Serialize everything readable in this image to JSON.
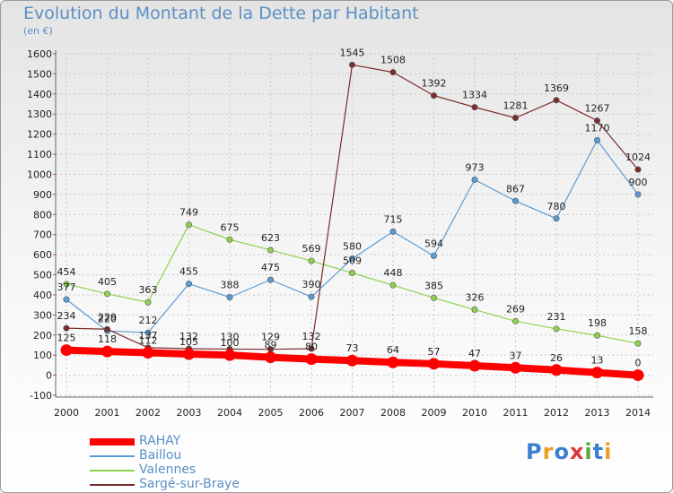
{
  "title": "Evolution du Montant de la Dette par Habitant",
  "subtitle": "(en €)",
  "logo": "Proxiti",
  "chart_data": {
    "type": "line",
    "x": [
      "2000",
      "2001",
      "2002",
      "2003",
      "2004",
      "2005",
      "2006",
      "2007",
      "2008",
      "2009",
      "2010",
      "2011",
      "2012",
      "2013",
      "2014"
    ],
    "ylim": [
      -100,
      1600
    ],
    "yticks": [
      -100,
      0,
      100,
      200,
      300,
      400,
      500,
      600,
      700,
      800,
      900,
      1000,
      1100,
      1200,
      1300,
      1400,
      1500,
      1600
    ],
    "grid": true,
    "legend_position": "bottom-left",
    "series": [
      {
        "name": "RAHAY",
        "color": "#ff0000",
        "values": [
          125,
          118,
          112,
          105,
          100,
          89,
          80,
          73,
          64,
          57,
          47,
          37,
          26,
          13,
          0
        ]
      },
      {
        "name": "Baillou",
        "color": "#5b9bd5",
        "values": [
          377,
          220,
          212,
          455,
          388,
          475,
          390,
          580,
          715,
          594,
          973,
          867,
          780,
          1170,
          900
        ]
      },
      {
        "name": "Valennes",
        "color": "#8fd14f",
        "values": [
          454,
          405,
          363,
          749,
          675,
          623,
          569,
          509,
          448,
          385,
          326,
          269,
          231,
          198,
          158
        ]
      },
      {
        "name": "Sargé-sur-Braye",
        "color": "#7b2c2c",
        "values": [
          234,
          229,
          137,
          132,
          130,
          129,
          132,
          1545,
          1508,
          1392,
          1334,
          1281,
          1369,
          1267,
          1024
        ]
      }
    ]
  }
}
